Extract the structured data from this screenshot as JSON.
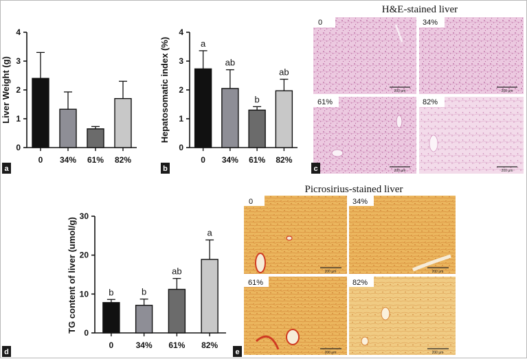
{
  "chart_data": [
    {
      "type": "bar",
      "panel": "a",
      "categories": [
        "0",
        "34%",
        "61%",
        "82%"
      ],
      "values": [
        2.4,
        1.33,
        0.65,
        1.7
      ],
      "errors": [
        0.9,
        0.6,
        0.08,
        0.6
      ],
      "ylabel": "Liver Weight (g)",
      "ylim": [
        0,
        4
      ],
      "yticks": [
        0,
        1,
        2,
        3,
        4
      ],
      "letters": [
        "",
        "",
        "",
        ""
      ],
      "colors": [
        "#111111",
        "#8e8e96",
        "#6b6b6b",
        "#c8c8c8"
      ]
    },
    {
      "type": "bar",
      "panel": "b",
      "categories": [
        "0",
        "34%",
        "61%",
        "82%"
      ],
      "values": [
        2.73,
        2.05,
        1.3,
        1.97
      ],
      "errors": [
        0.63,
        0.65,
        0.12,
        0.4
      ],
      "ylabel": "Hepatosomatic index (%)",
      "ylim": [
        0,
        4
      ],
      "yticks": [
        0,
        1,
        2,
        3,
        4
      ],
      "letters": [
        "a",
        "ab",
        "b",
        "ab"
      ],
      "colors": [
        "#111111",
        "#8e8e96",
        "#6b6b6b",
        "#c8c8c8"
      ]
    },
    {
      "type": "bar",
      "panel": "d",
      "categories": [
        "0",
        "34%",
        "61%",
        "82%"
      ],
      "values": [
        7.8,
        7.1,
        11.2,
        18.9
      ],
      "errors": [
        0.8,
        1.6,
        2.8,
        5.0
      ],
      "ylabel": "TG content of liver (umol/g)",
      "ylim": [
        0,
        30
      ],
      "yticks": [
        0,
        10,
        20,
        30
      ],
      "letters": [
        "b",
        "b",
        "ab",
        "a"
      ],
      "colors": [
        "#111111",
        "#8e8e96",
        "#6b6b6b",
        "#c8c8c8"
      ]
    }
  ],
  "panel_c": {
    "letter": "c",
    "title": "H&E-stained liver",
    "tiles": [
      "0",
      "34%",
      "61%",
      "82%"
    ],
    "scale_label": "200 μm"
  },
  "panel_e": {
    "letter": "e",
    "title": "Picrosirius-stained liver",
    "tiles": [
      "0",
      "34%",
      "61%",
      "82%"
    ],
    "scale_label": "200 μm"
  },
  "colors": {
    "he_stain": "#e9c2dc",
    "he_stain_dark": "#d69ac4",
    "picro_stain": "#e8b45a",
    "picro_stain_dark": "#d4622a",
    "panel_tag": "#1a1a1a"
  }
}
